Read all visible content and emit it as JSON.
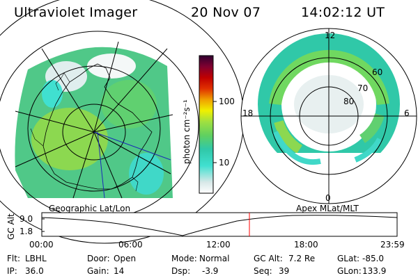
{
  "header": {
    "instrument": "Ultraviolet Imager",
    "date": "20 Nov 07",
    "time": "14:02:12 UT"
  },
  "colorbar": {
    "unit_label": "photon cm⁻²s⁻¹",
    "ticks": [
      "100",
      "10"
    ],
    "scale": "log",
    "colors": [
      "#ffffff",
      "#d8e8e8",
      "#40e0d0",
      "#30c8a8",
      "#60d060",
      "#a0e040",
      "#f0f000",
      "#f0a000",
      "#e03000",
      "#c00000",
      "#800030",
      "#300030"
    ]
  },
  "left_panel": {
    "label": "Geographic Lat/Lon"
  },
  "right_panel": {
    "label": "Apex MLat/MLT",
    "mlt_labels": {
      "top": "12",
      "left": "18",
      "right": "6",
      "bottom": "0"
    },
    "lat_labels": [
      "60",
      "70",
      "80"
    ]
  },
  "altitude_plot": {
    "ylabel": "GC Alt",
    "yticks": [
      "9.0",
      "1.8"
    ],
    "xticks": [
      "00:00",
      "06:00",
      "12:00",
      "18:00",
      "23:59"
    ],
    "marker_color": "#ff0000"
  },
  "status": {
    "row1": [
      {
        "label": "Flt:",
        "value": "LBHL"
      },
      {
        "label": "Door:",
        "value": "Open"
      },
      {
        "label": "Mode:",
        "value": "Normal"
      },
      {
        "label": "GC Alt:",
        "value": "7.2 Re"
      },
      {
        "label": "GLat:",
        "value": "-85.0"
      }
    ],
    "row2": [
      {
        "label": "IP:",
        "value": "36.0"
      },
      {
        "label": "Gain:",
        "value": "14"
      },
      {
        "label": "Dsp:",
        "value": "-3.9"
      },
      {
        "label": "Seq:",
        "value": "39"
      },
      {
        "label": "GLon:",
        "value": "133.9"
      }
    ]
  }
}
